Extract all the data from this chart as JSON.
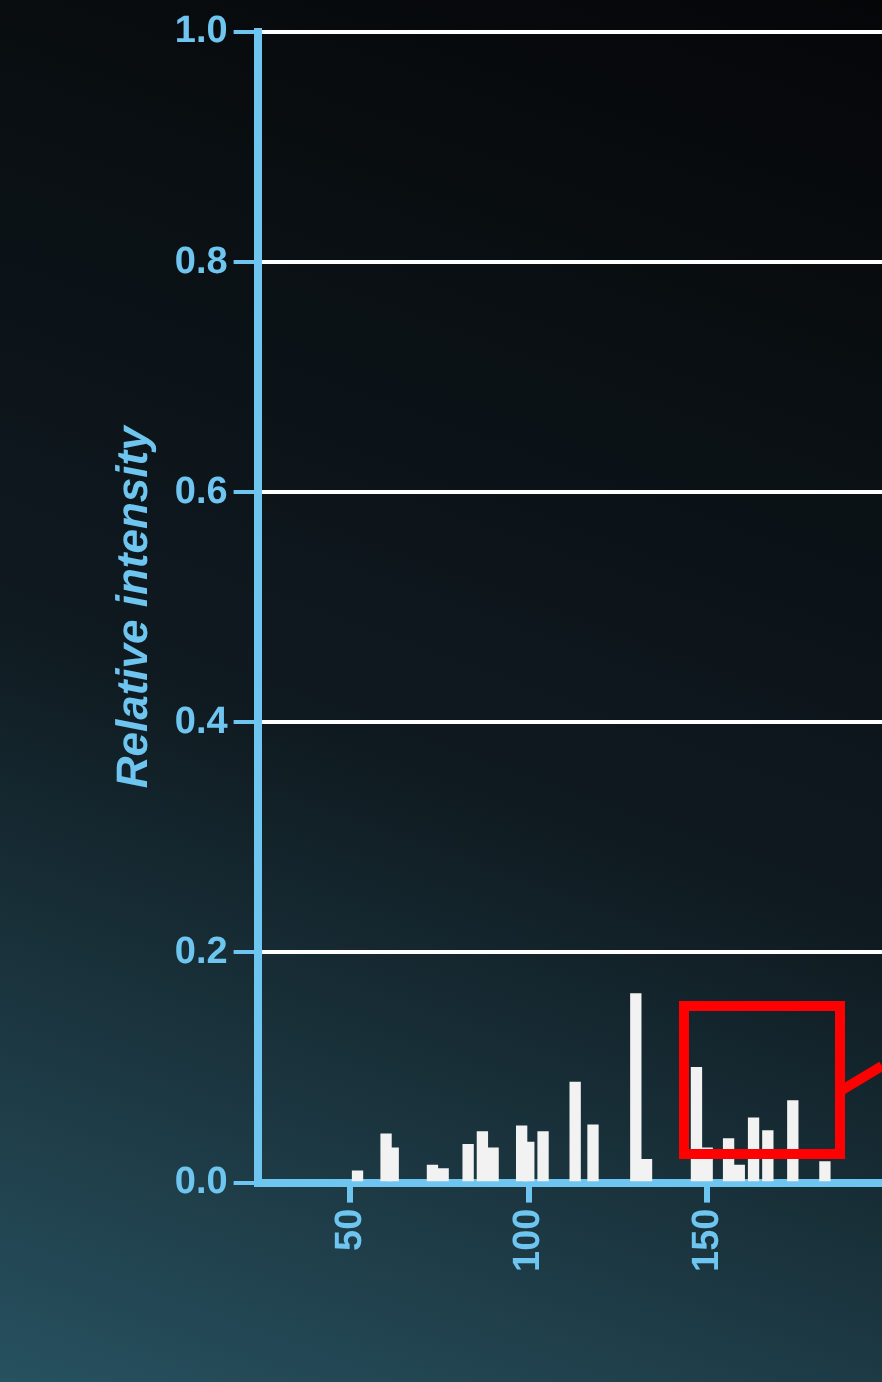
{
  "chart_data": {
    "type": "bar",
    "ylabel": "Relative intensity",
    "x": [
      52,
      60,
      62,
      73,
      76,
      83,
      87,
      90,
      98,
      100,
      104,
      113,
      118,
      130,
      133,
      147,
      150,
      156,
      159,
      163,
      167,
      174,
      183
    ],
    "values": [
      0.01,
      0.042,
      0.03,
      0.015,
      0.012,
      0.033,
      0.044,
      0.03,
      0.049,
      0.035,
      0.044,
      0.087,
      0.05,
      0.164,
      0.02,
      0.1,
      0.03,
      0.038,
      0.015,
      0.056,
      0.045,
      0.071,
      0.018
    ],
    "color": "#f2f2f2",
    "xlim": [
      24,
      199
    ],
    "xticks": [
      50,
      100,
      150
    ],
    "ylim": [
      0,
      1
    ],
    "yticks": [
      {
        "value": 0,
        "label": "0.0"
      },
      {
        "value": 0.2,
        "label": "0.2"
      },
      {
        "value": 0.4,
        "label": "0.4"
      },
      {
        "value": 0.6,
        "label": "0.6"
      },
      {
        "value": 0.8,
        "label": "0.8"
      },
      {
        "value": 1,
        "label": "1.0"
      }
    ],
    "grid": "y",
    "legend": false
  }
}
